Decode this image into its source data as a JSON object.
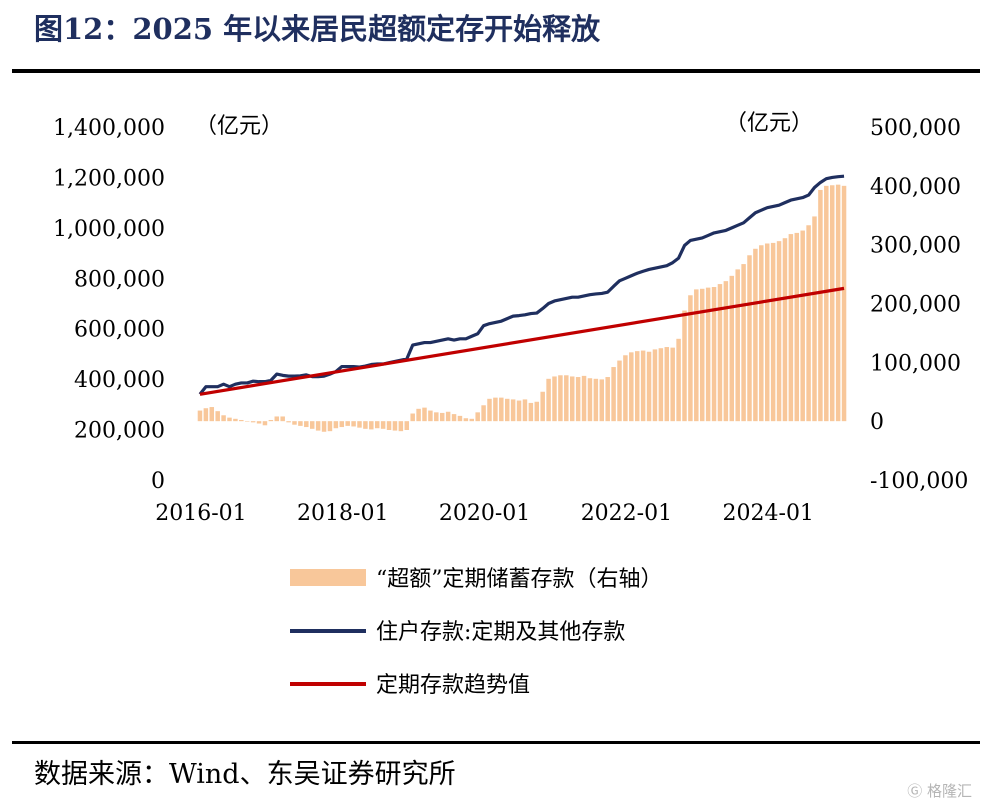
{
  "title": "图12：2025 年以来居民超额定存开始释放",
  "source": "数据来源：Wind、东吴证券研究所",
  "watermark": "格隆汇",
  "chart_data": {
    "type": "bar+line",
    "left_unit": "（亿元）",
    "right_unit": "（亿元）",
    "x_ticks": [
      "2016-01",
      "2018-01",
      "2020-01",
      "2022-01",
      "2024-01"
    ],
    "y_left": {
      "lim": [
        0,
        1400000
      ],
      "ticks": [
        0,
        200000,
        400000,
        600000,
        800000,
        1000000,
        1200000,
        1400000
      ],
      "tick_labels": [
        "0",
        "200,000",
        "400,000",
        "600,000",
        "800,000",
        "1,000,000",
        "1,200,000",
        "1,400,000"
      ]
    },
    "y_right": {
      "lim": [
        -100000,
        500000
      ],
      "ticks": [
        -100000,
        0,
        100000,
        200000,
        300000,
        400000,
        500000
      ],
      "tick_labels": [
        "-100,000",
        "0",
        "100,000",
        "200,000",
        "300,000",
        "400,000",
        "500,000"
      ]
    },
    "colors": {
      "bars": "#f8c79a",
      "line_deposits": "#1f2f5f",
      "line_trend": "#c00000"
    },
    "series": [
      {
        "name": "“超额”定期储蓄存款（右轴）",
        "axis": "right",
        "kind": "bar",
        "values": [
          18000,
          22000,
          24000,
          17000,
          10000,
          6000,
          4000,
          2000,
          0,
          -2000,
          -4000,
          -7000,
          2000,
          8000,
          8000,
          -2000,
          -6000,
          -8000,
          -10000,
          -13000,
          -16000,
          -18000,
          -17000,
          -12000,
          -10000,
          -8000,
          -9000,
          -11000,
          -13000,
          -14000,
          -12000,
          -13000,
          -15000,
          -16000,
          -17000,
          -15000,
          13000,
          21000,
          23000,
          18000,
          15000,
          14000,
          16000,
          12000,
          9000,
          5000,
          4000,
          15000,
          27000,
          38000,
          40000,
          40000,
          38000,
          37000,
          35000,
          37000,
          31000,
          33000,
          50000,
          72000,
          76000,
          78000,
          78000,
          76000,
          75000,
          77000,
          73000,
          72000,
          71000,
          75000,
          92000,
          103000,
          112000,
          117000,
          119000,
          120000,
          118000,
          122000,
          124000,
          126000,
          125000,
          140000,
          188000,
          214000,
          224000,
          225000,
          227000,
          228000,
          233000,
          238000,
          247000,
          258000,
          267000,
          282000,
          293000,
          299000,
          302000,
          303000,
          306000,
          311000,
          318000,
          320000,
          324000,
          333000,
          348000,
          393000,
          400000,
          401000,
          402000,
          400000
        ]
      },
      {
        "name": "住户存款:定期及其他存款",
        "axis": "left",
        "kind": "line",
        "values": [
          340000,
          370000,
          370000,
          370000,
          380000,
          370000,
          380000,
          385000,
          385000,
          392000,
          390000,
          390000,
          395000,
          420000,
          415000,
          412000,
          412000,
          413000,
          417000,
          410000,
          410000,
          412000,
          420000,
          430000,
          450000,
          450000,
          450000,
          448000,
          452000,
          458000,
          460000,
          460000,
          465000,
          470000,
          475000,
          480000,
          535000,
          540000,
          545000,
          545000,
          550000,
          555000,
          560000,
          555000,
          560000,
          560000,
          570000,
          580000,
          612000,
          620000,
          625000,
          630000,
          640000,
          650000,
          652000,
          655000,
          660000,
          662000,
          680000,
          700000,
          710000,
          715000,
          720000,
          725000,
          725000,
          730000,
          735000,
          738000,
          740000,
          745000,
          768000,
          790000,
          800000,
          810000,
          820000,
          828000,
          835000,
          840000,
          845000,
          850000,
          862000,
          880000,
          930000,
          950000,
          955000,
          960000,
          970000,
          980000,
          985000,
          990000,
          1000000,
          1010000,
          1020000,
          1040000,
          1060000,
          1070000,
          1080000,
          1085000,
          1090000,
          1100000,
          1110000,
          1115000,
          1120000,
          1130000,
          1160000,
          1180000,
          1195000,
          1200000,
          1203000,
          1205000
        ]
      },
      {
        "name": "定期存款趋势值",
        "axis": "left",
        "kind": "line",
        "x": [
          0,
          109
        ],
        "values": [
          340000,
          760000
        ]
      }
    ]
  }
}
